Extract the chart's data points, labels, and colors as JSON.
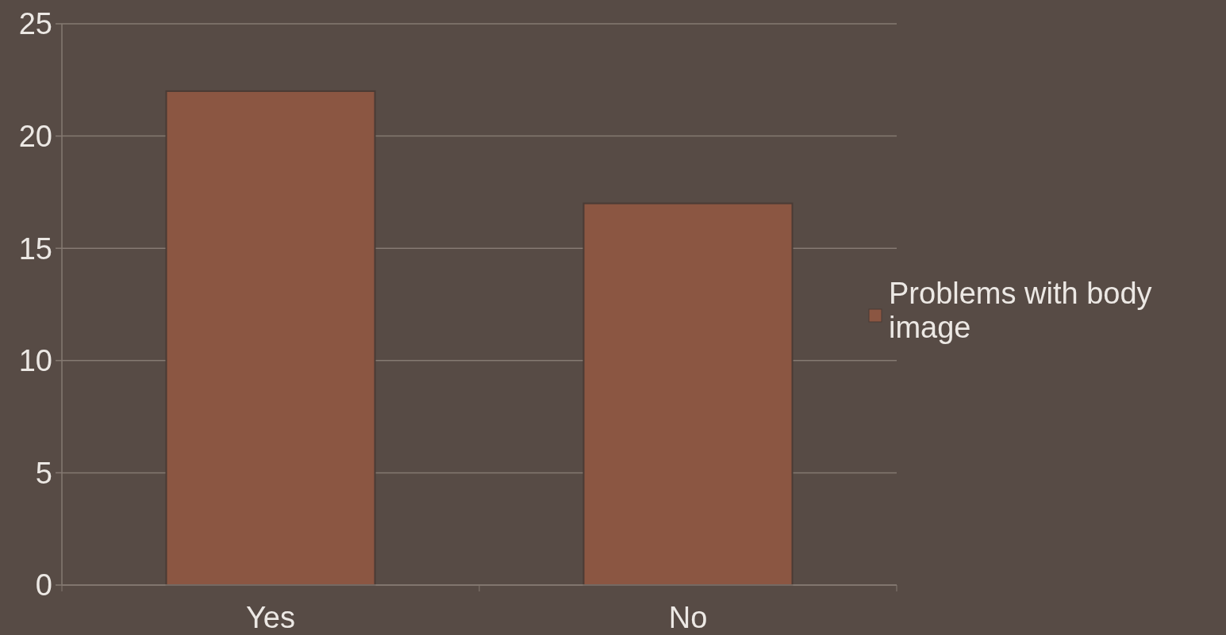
{
  "chart_data": {
    "type": "bar",
    "categories": [
      "Yes",
      "No"
    ],
    "series": [
      {
        "name": "Problems with body image",
        "color": "#8b5642",
        "values": [
          22,
          17
        ]
      }
    ],
    "ylim": [
      0,
      25
    ],
    "yticks": [
      0,
      5,
      10,
      15,
      20,
      25
    ],
    "grid": "y",
    "legend": "right"
  }
}
